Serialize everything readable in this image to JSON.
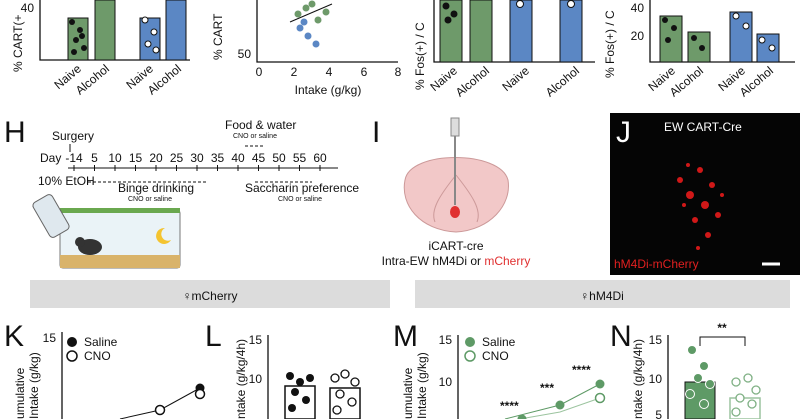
{
  "top_panels": [
    {
      "y_label": "% CART(+",
      "y_ticks": [
        "40"
      ],
      "x_labels": [
        "Naive",
        "Alcohol",
        "Naive",
        "Alcohol"
      ]
    },
    {
      "y_label": "% CART",
      "y_ticks": [
        "50"
      ],
      "x_ticks": [
        "0",
        "2",
        "4",
        "6",
        "8"
      ],
      "x_label": "Intake (g/kg)"
    },
    {
      "y_label": "% Fos(+) / C",
      "x_labels": [
        "Naive",
        "Alcohol",
        "Naive",
        "Alcohol"
      ]
    },
    {
      "y_label": "% Fos(+) / C",
      "y_ticks": [
        "40",
        "20"
      ],
      "x_labels": [
        "Naive",
        "Alcohol",
        "Naive",
        "Alcohol"
      ]
    }
  ],
  "panel_h": {
    "letter": "H",
    "surgery": "Surgery",
    "day": "Day",
    "days": [
      "-14",
      "5",
      "10",
      "15",
      "20",
      "25",
      "30",
      "35",
      "40",
      "45",
      "50",
      "55",
      "60"
    ],
    "food_water": "Food & water",
    "food_water_note": "CNO or saline",
    "etoh": "10% EtOH",
    "binge": "Binge drinking",
    "binge_note": "CNO or saline",
    "saccharin": "Saccharin preference",
    "saccharin_note": "CNO or saline"
  },
  "panel_i": {
    "letter": "I",
    "line1": "iCART-cre",
    "line2": "Intra-EW hM4Di or ",
    "line2_red": "mCherry"
  },
  "panel_j": {
    "letter": "J",
    "title": "EW CART-Cre",
    "label": "hM4Di-mCherry"
  },
  "banners": [
    "♀mCherry",
    "♀hM4Di"
  ],
  "panel_k": {
    "letter": "K",
    "y_label_1": "umulative",
    "y_label_2": "Intake (g/kg)",
    "y_ticks": [
      "15"
    ],
    "legend": [
      "Saline",
      "CNO"
    ]
  },
  "panel_l": {
    "letter": "L",
    "y_label": "ntake (g/kg/4h)",
    "y_ticks": [
      "15",
      "10"
    ]
  },
  "panel_m": {
    "letter": "M",
    "y_label_1": "umulative",
    "y_label_2": "Intake (g/kg)",
    "y_ticks": [
      "15",
      "10"
    ],
    "legend": [
      "Saline",
      "CNO"
    ],
    "stars": [
      "****",
      "***",
      "****"
    ]
  },
  "panel_n": {
    "letter": "N",
    "y_label": "ntake (g/kg/4h)",
    "y_ticks": [
      "15",
      "10",
      "5"
    ],
    "stars": "**"
  }
}
